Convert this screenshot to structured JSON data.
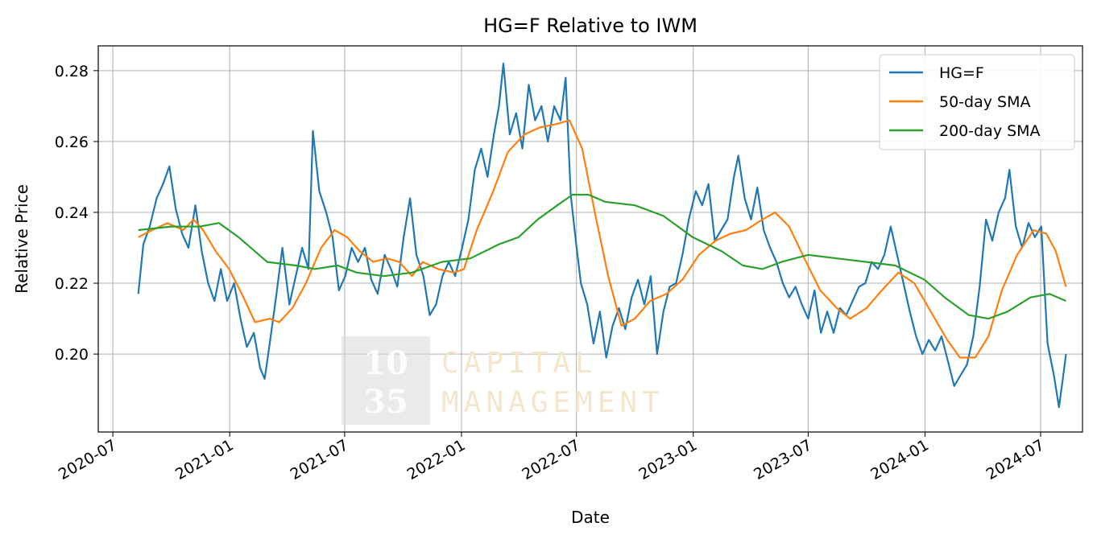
{
  "chart_data": {
    "type": "line",
    "title": "HG=F Relative to IWM",
    "xlabel": "Date",
    "ylabel": "Relative Price",
    "x_range": [
      "2020-06-08",
      "2024-09-05"
    ],
    "ylim": [
      0.178,
      0.287
    ],
    "x_ticks": [
      "2020-07",
      "2021-01",
      "2021-07",
      "2022-01",
      "2022-07",
      "2023-01",
      "2023-07",
      "2024-01",
      "2024-07"
    ],
    "y_ticks": [
      0.2,
      0.22,
      0.24,
      0.26,
      0.28
    ],
    "y_tick_labels": [
      "0.20",
      "0.22",
      "0.24",
      "0.26",
      "0.28"
    ],
    "grid": true,
    "legend_position": "top-right",
    "series": [
      {
        "name": "HG=F",
        "color": "#1f77b4",
        "points": [
          [
            "2020-08-10",
            0.217
          ],
          [
            "2020-08-18",
            0.231
          ],
          [
            "2020-08-28",
            0.236
          ],
          [
            "2020-09-08",
            0.244
          ],
          [
            "2020-09-18",
            0.248
          ],
          [
            "2020-09-28",
            0.253
          ],
          [
            "2020-10-08",
            0.241
          ],
          [
            "2020-10-18",
            0.234
          ],
          [
            "2020-10-28",
            0.23
          ],
          [
            "2020-11-08",
            0.242
          ],
          [
            "2020-11-18",
            0.229
          ],
          [
            "2020-11-28",
            0.22
          ],
          [
            "2020-12-08",
            0.215
          ],
          [
            "2020-12-18",
            0.224
          ],
          [
            "2020-12-28",
            0.215
          ],
          [
            "2021-01-08",
            0.22
          ],
          [
            "2021-01-18",
            0.21
          ],
          [
            "2021-01-28",
            0.202
          ],
          [
            "2021-02-08",
            0.206
          ],
          [
            "2021-02-18",
            0.196
          ],
          [
            "2021-02-25",
            0.193
          ],
          [
            "2021-03-05",
            0.203
          ],
          [
            "2021-03-15",
            0.216
          ],
          [
            "2021-03-25",
            0.23
          ],
          [
            "2021-04-05",
            0.214
          ],
          [
            "2021-04-15",
            0.222
          ],
          [
            "2021-04-25",
            0.23
          ],
          [
            "2021-05-05",
            0.224
          ],
          [
            "2021-05-12",
            0.263
          ],
          [
            "2021-05-22",
            0.246
          ],
          [
            "2021-06-02",
            0.24
          ],
          [
            "2021-06-12",
            0.233
          ],
          [
            "2021-06-22",
            0.218
          ],
          [
            "2021-07-02",
            0.222
          ],
          [
            "2021-07-12",
            0.23
          ],
          [
            "2021-07-22",
            0.226
          ],
          [
            "2021-08-02",
            0.23
          ],
          [
            "2021-08-12",
            0.221
          ],
          [
            "2021-08-22",
            0.217
          ],
          [
            "2021-09-02",
            0.228
          ],
          [
            "2021-09-12",
            0.224
          ],
          [
            "2021-09-22",
            0.219
          ],
          [
            "2021-10-02",
            0.233
          ],
          [
            "2021-10-12",
            0.244
          ],
          [
            "2021-10-22",
            0.228
          ],
          [
            "2021-11-02",
            0.222
          ],
          [
            "2021-11-12",
            0.211
          ],
          [
            "2021-11-22",
            0.214
          ],
          [
            "2021-12-02",
            0.222
          ],
          [
            "2021-12-12",
            0.226
          ],
          [
            "2021-12-22",
            0.222
          ],
          [
            "2022-01-02",
            0.23
          ],
          [
            "2022-01-12",
            0.238
          ],
          [
            "2022-01-22",
            0.252
          ],
          [
            "2022-02-01",
            0.258
          ],
          [
            "2022-02-11",
            0.25
          ],
          [
            "2022-02-21",
            0.262
          ],
          [
            "2022-03-01",
            0.27
          ],
          [
            "2022-03-08",
            0.282
          ],
          [
            "2022-03-18",
            0.262
          ],
          [
            "2022-03-28",
            0.268
          ],
          [
            "2022-04-07",
            0.258
          ],
          [
            "2022-04-17",
            0.276
          ],
          [
            "2022-04-27",
            0.266
          ],
          [
            "2022-05-07",
            0.27
          ],
          [
            "2022-05-17",
            0.26
          ],
          [
            "2022-05-27",
            0.27
          ],
          [
            "2022-06-06",
            0.266
          ],
          [
            "2022-06-14",
            0.278
          ],
          [
            "2022-06-22",
            0.245
          ],
          [
            "2022-06-30",
            0.232
          ],
          [
            "2022-07-08",
            0.22
          ],
          [
            "2022-07-18",
            0.214
          ],
          [
            "2022-07-28",
            0.203
          ],
          [
            "2022-08-07",
            0.212
          ],
          [
            "2022-08-17",
            0.199
          ],
          [
            "2022-08-27",
            0.208
          ],
          [
            "2022-09-06",
            0.213
          ],
          [
            "2022-09-16",
            0.207
          ],
          [
            "2022-09-26",
            0.216
          ],
          [
            "2022-10-06",
            0.221
          ],
          [
            "2022-10-16",
            0.214
          ],
          [
            "2022-10-26",
            0.222
          ],
          [
            "2022-11-05",
            0.2
          ],
          [
            "2022-11-15",
            0.212
          ],
          [
            "2022-11-25",
            0.219
          ],
          [
            "2022-12-05",
            0.22
          ],
          [
            "2022-12-15",
            0.228
          ],
          [
            "2022-12-25",
            0.238
          ],
          [
            "2023-01-05",
            0.246
          ],
          [
            "2023-01-15",
            0.242
          ],
          [
            "2023-01-25",
            0.248
          ],
          [
            "2023-02-04",
            0.232
          ],
          [
            "2023-02-14",
            0.235
          ],
          [
            "2023-02-24",
            0.238
          ],
          [
            "2023-03-06",
            0.25
          ],
          [
            "2023-03-13",
            0.256
          ],
          [
            "2023-03-23",
            0.244
          ],
          [
            "2023-04-02",
            0.238
          ],
          [
            "2023-04-12",
            0.247
          ],
          [
            "2023-04-22",
            0.235
          ],
          [
            "2023-05-02",
            0.23
          ],
          [
            "2023-05-12",
            0.226
          ],
          [
            "2023-05-22",
            0.22
          ],
          [
            "2023-06-01",
            0.216
          ],
          [
            "2023-06-11",
            0.219
          ],
          [
            "2023-06-21",
            0.214
          ],
          [
            "2023-07-01",
            0.21
          ],
          [
            "2023-07-11",
            0.218
          ],
          [
            "2023-07-21",
            0.206
          ],
          [
            "2023-07-31",
            0.212
          ],
          [
            "2023-08-10",
            0.206
          ],
          [
            "2023-08-20",
            0.213
          ],
          [
            "2023-08-30",
            0.211
          ],
          [
            "2023-09-09",
            0.215
          ],
          [
            "2023-09-19",
            0.219
          ],
          [
            "2023-09-29",
            0.22
          ],
          [
            "2023-10-09",
            0.226
          ],
          [
            "2023-10-19",
            0.224
          ],
          [
            "2023-10-29",
            0.228
          ],
          [
            "2023-11-08",
            0.236
          ],
          [
            "2023-11-18",
            0.228
          ],
          [
            "2023-11-28",
            0.22
          ],
          [
            "2023-12-08",
            0.212
          ],
          [
            "2023-12-18",
            0.205
          ],
          [
            "2023-12-28",
            0.2
          ],
          [
            "2024-01-07",
            0.204
          ],
          [
            "2024-01-17",
            0.201
          ],
          [
            "2024-01-27",
            0.205
          ],
          [
            "2024-02-06",
            0.198
          ],
          [
            "2024-02-16",
            0.191
          ],
          [
            "2024-02-26",
            0.194
          ],
          [
            "2024-03-07",
            0.197
          ],
          [
            "2024-03-17",
            0.205
          ],
          [
            "2024-03-27",
            0.219
          ],
          [
            "2024-04-06",
            0.238
          ],
          [
            "2024-04-16",
            0.232
          ],
          [
            "2024-04-26",
            0.24
          ],
          [
            "2024-05-06",
            0.244
          ],
          [
            "2024-05-13",
            0.252
          ],
          [
            "2024-05-23",
            0.236
          ],
          [
            "2024-06-02",
            0.23
          ],
          [
            "2024-06-12",
            0.237
          ],
          [
            "2024-06-22",
            0.233
          ],
          [
            "2024-07-02",
            0.236
          ],
          [
            "2024-07-12",
            0.203
          ],
          [
            "2024-07-22",
            0.194
          ],
          [
            "2024-07-30",
            0.185
          ],
          [
            "2024-08-05",
            0.193
          ],
          [
            "2024-08-10",
            0.2
          ]
        ]
      },
      {
        "name": "50-day SMA",
        "color": "#ff7f0e",
        "points": [
          [
            "2020-08-10",
            0.233
          ],
          [
            "2020-09-01",
            0.235
          ],
          [
            "2020-09-25",
            0.237
          ],
          [
            "2020-10-20",
            0.235
          ],
          [
            "2020-11-05",
            0.238
          ],
          [
            "2020-11-20",
            0.235
          ],
          [
            "2020-12-10",
            0.229
          ],
          [
            "2020-12-31",
            0.224
          ],
          [
            "2021-01-20",
            0.217
          ],
          [
            "2021-02-10",
            0.209
          ],
          [
            "2021-03-05",
            0.21
          ],
          [
            "2021-03-20",
            0.209
          ],
          [
            "2021-04-10",
            0.213
          ],
          [
            "2021-05-01",
            0.22
          ],
          [
            "2021-05-25",
            0.23
          ],
          [
            "2021-06-15",
            0.235
          ],
          [
            "2021-07-05",
            0.233
          ],
          [
            "2021-07-25",
            0.229
          ],
          [
            "2021-08-15",
            0.226
          ],
          [
            "2021-09-05",
            0.227
          ],
          [
            "2021-09-25",
            0.226
          ],
          [
            "2021-10-15",
            0.222
          ],
          [
            "2021-11-01",
            0.226
          ],
          [
            "2021-11-25",
            0.224
          ],
          [
            "2021-12-20",
            0.223
          ],
          [
            "2022-01-05",
            0.224
          ],
          [
            "2022-01-25",
            0.235
          ],
          [
            "2022-02-20",
            0.246
          ],
          [
            "2022-03-15",
            0.257
          ],
          [
            "2022-04-10",
            0.262
          ],
          [
            "2022-05-05",
            0.264
          ],
          [
            "2022-06-01",
            0.265
          ],
          [
            "2022-06-20",
            0.266
          ],
          [
            "2022-07-10",
            0.258
          ],
          [
            "2022-07-30",
            0.24
          ],
          [
            "2022-08-20",
            0.222
          ],
          [
            "2022-09-10",
            0.208
          ],
          [
            "2022-10-01",
            0.21
          ],
          [
            "2022-10-25",
            0.215
          ],
          [
            "2022-11-20",
            0.217
          ],
          [
            "2022-12-15",
            0.221
          ],
          [
            "2023-01-10",
            0.228
          ],
          [
            "2023-02-05",
            0.232
          ],
          [
            "2023-03-01",
            0.234
          ],
          [
            "2023-03-25",
            0.235
          ],
          [
            "2023-04-20",
            0.238
          ],
          [
            "2023-05-10",
            0.24
          ],
          [
            "2023-06-01",
            0.236
          ],
          [
            "2023-06-25",
            0.227
          ],
          [
            "2023-07-20",
            0.218
          ],
          [
            "2023-08-15",
            0.213
          ],
          [
            "2023-09-05",
            0.21
          ],
          [
            "2023-10-01",
            0.213
          ],
          [
            "2023-10-25",
            0.218
          ],
          [
            "2023-11-20",
            0.223
          ],
          [
            "2023-12-15",
            0.22
          ],
          [
            "2024-01-10",
            0.212
          ],
          [
            "2024-02-05",
            0.204
          ],
          [
            "2024-02-25",
            0.199
          ],
          [
            "2024-03-20",
            0.199
          ],
          [
            "2024-04-10",
            0.205
          ],
          [
            "2024-05-01",
            0.218
          ],
          [
            "2024-05-25",
            0.228
          ],
          [
            "2024-06-20",
            0.235
          ],
          [
            "2024-07-10",
            0.234
          ],
          [
            "2024-07-25",
            0.229
          ],
          [
            "2024-08-10",
            0.219
          ]
        ]
      },
      {
        "name": "200-day SMA",
        "color": "#2ca02c",
        "points": [
          [
            "2020-08-10",
            0.235
          ],
          [
            "2020-10-01",
            0.236
          ],
          [
            "2020-11-15",
            0.236
          ],
          [
            "2020-12-15",
            0.237
          ],
          [
            "2021-01-15",
            0.233
          ],
          [
            "2021-03-01",
            0.226
          ],
          [
            "2021-04-15",
            0.225
          ],
          [
            "2021-05-15",
            0.224
          ],
          [
            "2021-06-20",
            0.225
          ],
          [
            "2021-07-20",
            0.223
          ],
          [
            "2021-09-01",
            0.222
          ],
          [
            "2021-10-15",
            0.223
          ],
          [
            "2021-12-01",
            0.226
          ],
          [
            "2022-01-15",
            0.227
          ],
          [
            "2022-03-01",
            0.231
          ],
          [
            "2022-04-01",
            0.233
          ],
          [
            "2022-05-01",
            0.238
          ],
          [
            "2022-06-01",
            0.242
          ],
          [
            "2022-06-25",
            0.245
          ],
          [
            "2022-07-20",
            0.245
          ],
          [
            "2022-08-15",
            0.243
          ],
          [
            "2022-10-01",
            0.242
          ],
          [
            "2022-11-15",
            0.239
          ],
          [
            "2022-12-31",
            0.233
          ],
          [
            "2023-02-15",
            0.229
          ],
          [
            "2023-03-20",
            0.225
          ],
          [
            "2023-04-20",
            0.224
          ],
          [
            "2023-05-20",
            0.226
          ],
          [
            "2023-07-01",
            0.228
          ],
          [
            "2023-08-15",
            0.227
          ],
          [
            "2023-10-01",
            0.226
          ],
          [
            "2023-11-15",
            0.225
          ],
          [
            "2023-12-31",
            0.221
          ],
          [
            "2024-02-01",
            0.216
          ],
          [
            "2024-03-10",
            0.211
          ],
          [
            "2024-04-10",
            0.21
          ],
          [
            "2024-05-10",
            0.212
          ],
          [
            "2024-06-15",
            0.216
          ],
          [
            "2024-07-15",
            0.217
          ],
          [
            "2024-08-10",
            0.215
          ]
        ]
      }
    ]
  },
  "watermark": {
    "line1": "10",
    "line2": "35",
    "word1": "CAPITAL",
    "word2": "MANAGEMENT"
  }
}
